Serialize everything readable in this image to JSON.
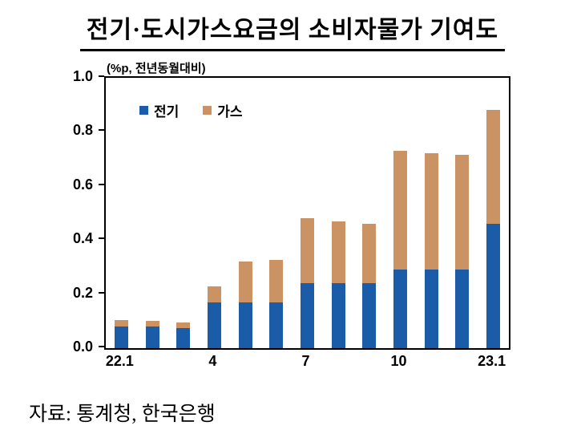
{
  "title": "전기·도시가스요금의 소비자물가 기여도",
  "unit_label": "(%p, 전년동월대비)",
  "source": "자료: 통계청, 한국은행",
  "legend": [
    {
      "label": "전기",
      "color": "#1a5ca8"
    },
    {
      "label": "가스",
      "color": "#cb9264"
    }
  ],
  "chart_data": {
    "type": "bar",
    "stacked": true,
    "title": "전기·도시가스요금의 소비자물가 기여도",
    "ylabel": "(%p, 전년동월대비)",
    "categories": [
      "22.1",
      "22.2",
      "22.3",
      "22.4",
      "22.5",
      "22.6",
      "22.7",
      "22.8",
      "22.9",
      "22.10",
      "22.11",
      "22.12",
      "23.1"
    ],
    "x_ticks": [
      {
        "index": 0,
        "label": "22.1"
      },
      {
        "index": 3,
        "label": "4"
      },
      {
        "index": 6,
        "label": "7"
      },
      {
        "index": 9,
        "label": "10"
      },
      {
        "index": 12,
        "label": "23.1"
      }
    ],
    "series": [
      {
        "name": "전기",
        "key": "electricity",
        "color": "#1a5ca8",
        "values": [
          0.08,
          0.08,
          0.075,
          0.17,
          0.17,
          0.17,
          0.24,
          0.24,
          0.24,
          0.29,
          0.29,
          0.29,
          0.46
        ]
      },
      {
        "name": "가스",
        "key": "gas",
        "color": "#cb9264",
        "values": [
          0.025,
          0.02,
          0.02,
          0.06,
          0.15,
          0.155,
          0.24,
          0.23,
          0.22,
          0.44,
          0.43,
          0.425,
          0.42
        ]
      }
    ],
    "ylim": [
      0,
      1.0
    ],
    "yticks": [
      0.0,
      0.2,
      0.4,
      0.6,
      0.8,
      1.0
    ],
    "grid": false,
    "legend_position": "top-left-inside"
  }
}
